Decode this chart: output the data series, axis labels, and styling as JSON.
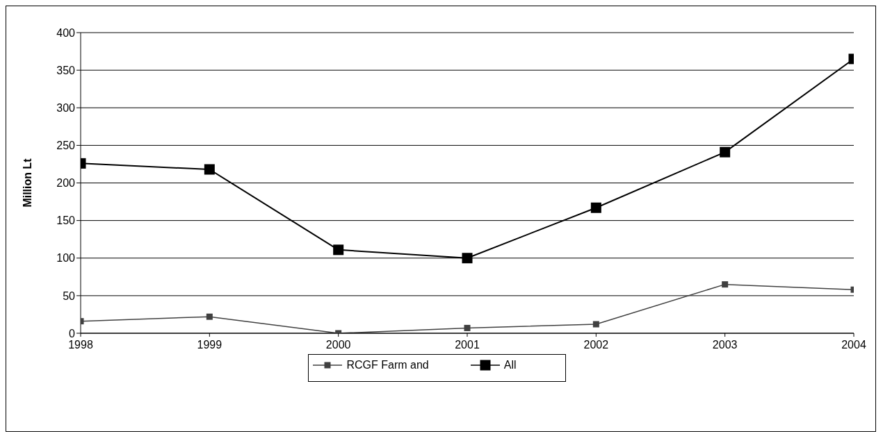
{
  "chart_data": {
    "type": "line",
    "ylabel": "Million Lt",
    "x": [
      1998,
      1999,
      2000,
      2001,
      2002,
      2003,
      2004
    ],
    "xlim": [
      1998,
      2004
    ],
    "xticks": [
      1998,
      1999,
      2000,
      2001,
      2002,
      2003,
      2004
    ],
    "ylim": [
      0,
      400
    ],
    "yticks": [
      0,
      50,
      100,
      150,
      200,
      250,
      300,
      350,
      400
    ],
    "grid": "y",
    "legend": "bottom",
    "marker": "square",
    "line_style": "solid",
    "series": [
      {
        "name": "RCGF Farm and",
        "color": "#404040",
        "values": [
          16,
          22,
          0,
          7,
          12,
          65,
          58
        ]
      },
      {
        "name": "All",
        "color": "#000000",
        "values": [
          226,
          218,
          111,
          100,
          167,
          241,
          365
        ]
      }
    ]
  }
}
